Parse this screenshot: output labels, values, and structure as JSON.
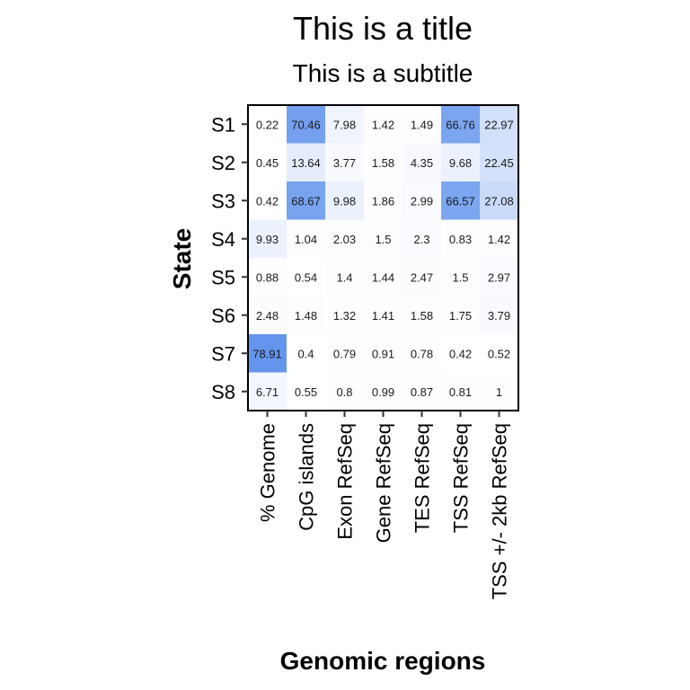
{
  "chart_data": {
    "type": "heatmap",
    "title": "This is a title",
    "subtitle": "This is a subtitle",
    "xlabel": "Genomic regions",
    "ylabel": "State",
    "x_categories": [
      "% Genome",
      "CpG islands",
      "Exon RefSeq",
      "Gene RefSeq",
      "TES RefSeq",
      "TSS RefSeq",
      "TSS +/- 2kb RefSeq"
    ],
    "y_categories": [
      "S1",
      "S2",
      "S3",
      "S4",
      "S5",
      "S6",
      "S7",
      "S8"
    ],
    "values": [
      [
        "0.22",
        "70.46",
        "7.98",
        "1.42",
        "1.49",
        "66.76",
        "22.97"
      ],
      [
        "0.45",
        "13.64",
        "3.77",
        "1.58",
        "4.35",
        "9.68",
        "22.45"
      ],
      [
        "0.42",
        "68.67",
        "9.98",
        "1.86",
        "2.99",
        "66.57",
        "27.08"
      ],
      [
        "9.93",
        "1.04",
        "2.03",
        "1.5",
        "2.3",
        "0.83",
        "1.42"
      ],
      [
        "0.88",
        "0.54",
        "1.4",
        "1.44",
        "2.47",
        "1.5",
        "2.97"
      ],
      [
        "2.48",
        "1.48",
        "1.32",
        "1.41",
        "1.58",
        "1.75",
        "3.79"
      ],
      [
        "78.91",
        "0.4",
        "0.79",
        "0.91",
        "0.78",
        "0.42",
        "0.52"
      ],
      [
        "6.71",
        "0.55",
        "0.8",
        "0.99",
        "0.87",
        "0.81",
        "1"
      ]
    ],
    "color_low": "#ffffff",
    "color_high": "#6495ed",
    "grid": false
  }
}
